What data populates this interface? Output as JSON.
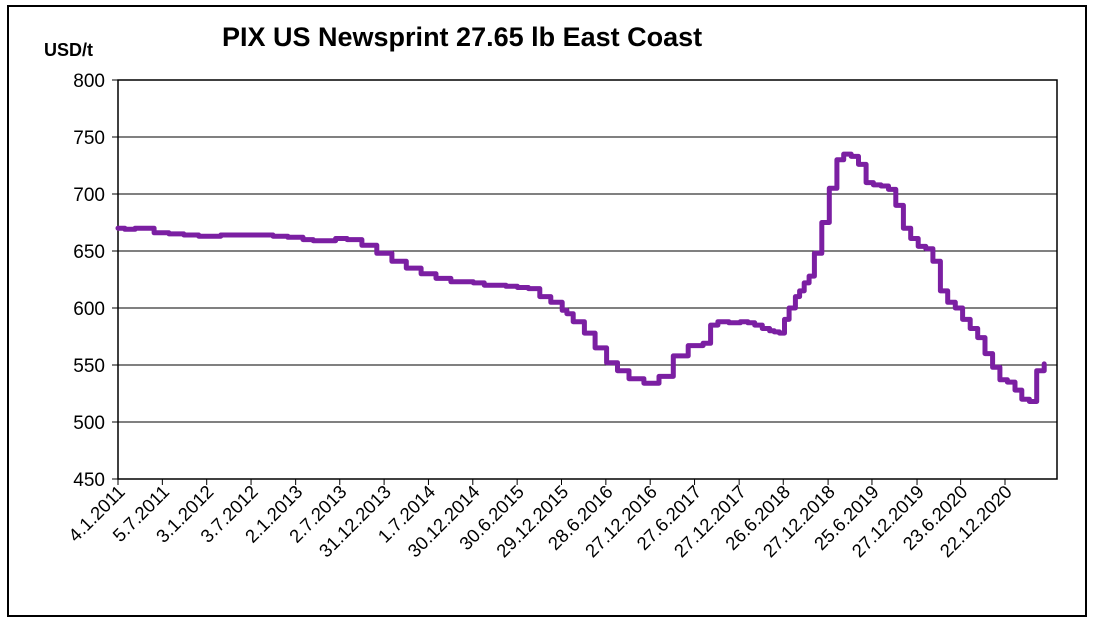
{
  "chart_data": {
    "type": "line",
    "title": "PIX US Newsprint 27.65 lb East Coast",
    "ylabel": "USD/t",
    "xlabel": "",
    "ylim": [
      450,
      800
    ],
    "yticks": [
      450,
      500,
      550,
      600,
      650,
      700,
      750,
      800
    ],
    "grid": "horizontal",
    "line_color": "#7b1fa2",
    "x_tick_labels": [
      "4.1.2011",
      "5.7.2011",
      "3.1.2012",
      "3.7.2012",
      "2.1.2013",
      "2.7.2013",
      "31.12.2013",
      "1.7.2014",
      "30.12.2014",
      "30.6.2015",
      "29.12.2015",
      "28.6.2016",
      "27.12.2016",
      "27.6.2017",
      "27.12.2017",
      "26.6.2018",
      "27.12.2018",
      "25.6.2019",
      "27.12.2019",
      "23.6.2020",
      "22.12.2020"
    ],
    "series": [
      {
        "x": [
          "2011-01-04",
          "2011-02-01",
          "2011-03-15",
          "2011-04-15",
          "2011-06-01",
          "2011-08-01",
          "2011-10-01",
          "2011-12-01",
          "2012-03-01",
          "2012-06-01",
          "2012-08-01",
          "2012-10-01",
          "2012-12-01",
          "2013-02-01",
          "2013-03-15",
          "2013-05-01",
          "2013-06-15",
          "2013-08-01",
          "2013-10-01",
          "2013-12-01",
          "2014-02-01",
          "2014-04-01",
          "2014-06-01",
          "2014-08-01",
          "2014-10-01",
          "2014-11-15",
          "2015-01-01",
          "2015-02-15",
          "2015-04-01",
          "2015-05-15",
          "2015-07-01",
          "2015-08-15",
          "2015-10-01",
          "2015-11-15",
          "2016-01-01",
          "2016-01-20",
          "2016-02-15",
          "2016-04-01",
          "2016-05-15",
          "2016-07-01",
          "2016-08-15",
          "2016-10-01",
          "2016-12-01",
          "2017-02-01",
          "2017-04-01",
          "2017-06-01",
          "2017-08-01",
          "2017-09-01",
          "2017-10-01",
          "2017-11-15",
          "2018-01-01",
          "2018-02-01",
          "2018-03-01",
          "2018-04-01",
          "2018-05-01",
          "2018-05-20",
          "2018-06-10",
          "2018-07-01",
          "2018-07-20",
          "2018-08-15",
          "2018-09-01",
          "2018-09-20",
          "2018-10-10",
          "2018-11-01",
          "2018-12-01",
          "2019-01-01",
          "2019-02-01",
          "2019-03-01",
          "2019-04-01",
          "2019-05-01",
          "2019-06-01",
          "2019-07-01",
          "2019-08-01",
          "2019-09-01",
          "2019-10-01",
          "2019-11-01",
          "2019-12-01",
          "2020-01-01",
          "2020-02-01",
          "2020-03-01",
          "2020-04-01",
          "2020-05-01",
          "2020-06-01",
          "2020-07-01",
          "2020-08-01",
          "2020-09-01",
          "2020-10-01",
          "2020-11-01",
          "2020-12-01",
          "2021-01-01",
          "2021-02-01",
          "2021-03-01",
          "2021-04-01",
          "2021-05-01",
          "2021-06-01"
        ],
        "y": [
          670,
          669,
          670,
          670,
          666,
          665,
          664,
          663,
          664,
          664,
          664,
          663,
          662,
          660,
          659,
          659,
          661,
          660,
          655,
          648,
          641,
          635,
          630,
          626,
          623,
          623,
          622,
          620,
          620,
          619,
          618,
          617,
          610,
          605,
          598,
          595,
          588,
          578,
          565,
          552,
          545,
          538,
          534,
          540,
          558,
          567,
          569,
          585,
          588,
          587,
          588,
          587,
          585,
          582,
          580,
          579,
          578,
          590,
          600,
          610,
          615,
          622,
          628,
          648,
          675,
          705,
          730,
          735,
          733,
          726,
          710,
          708,
          707,
          704,
          690,
          670,
          661,
          654,
          652,
          641,
          615,
          605,
          600,
          590,
          582,
          574,
          560,
          548,
          537,
          535,
          528,
          520,
          518,
          545,
          551
        ]
      }
    ]
  }
}
